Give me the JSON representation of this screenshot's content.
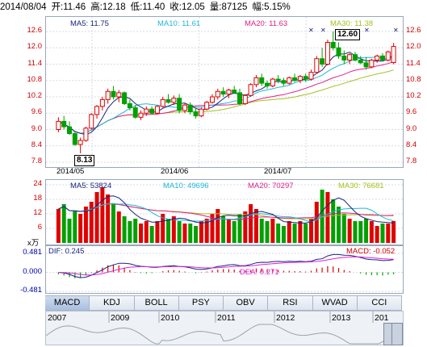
{
  "header": {
    "date": "2014/08/04",
    "open": "开:11.46",
    "high": "高:12.18",
    "low": "低:11.40",
    "close": "收:12.05",
    "volume": "量:87125",
    "change": "幅:5.15%"
  },
  "price_legend": {
    "ma5": "MA5: 11.75",
    "ma10": "MA10: 11.61",
    "ma20": "MA20: 11.63",
    "ma30": "MA30: 11.38"
  },
  "volume_legend": {
    "ma5": "MA5: 53824",
    "ma10": "MA10: 49696",
    "ma20": "MA20: 70297",
    "ma30": "MA30: 76681"
  },
  "volume_unit": "x万",
  "macd_legend": {
    "dif": "DIF: 0.245",
    "dea": "DEA: 0.271",
    "macd": "MACD: -0.052"
  },
  "price_ticks": [
    "12.6",
    "12.0",
    "11.4",
    "10.8",
    "10.2",
    "9.6",
    "9.0",
    "8.4",
    "7.8"
  ],
  "volume_ticks": [
    "24",
    "18",
    "12",
    "6"
  ],
  "macd_ticks": [
    "0.481",
    "0.000",
    "-0.481"
  ],
  "x_ticks": [
    "2014/05",
    "2014/06",
    "2014/07"
  ],
  "callouts": {
    "high": "12.60",
    "low": "8.13"
  },
  "tabs": [
    "MACD",
    "KDJ",
    "BOLL",
    "PSY",
    "OBV",
    "RSI",
    "WVAD",
    "CCI"
  ],
  "timeline_years": [
    "2007",
    "2009",
    "2010",
    "2011",
    "2012",
    "2013",
    "201"
  ],
  "colors": {
    "up": "#e00000",
    "down": "#00a000",
    "ma5": "#1a237e",
    "ma10": "#20b8d8",
    "ma20": "#e0208a",
    "ma30": "#a6c020",
    "dif": "#1a237e",
    "dea": "#e020d8"
  },
  "chart_data": {
    "type": "candlestick",
    "ylim": [
      7.8,
      12.6
    ],
    "candles": [
      [
        9.0,
        9.45,
        8.9,
        9.3
      ],
      [
        9.3,
        9.5,
        9.0,
        9.1
      ],
      [
        9.1,
        9.3,
        8.8,
        8.85
      ],
      [
        8.85,
        8.95,
        8.4,
        8.45
      ],
      [
        8.45,
        8.7,
        8.13,
        8.6
      ],
      [
        8.6,
        9.1,
        8.55,
        9.05
      ],
      [
        9.05,
        9.6,
        9.0,
        9.55
      ],
      [
        9.55,
        9.9,
        9.4,
        9.85
      ],
      [
        9.85,
        10.2,
        9.7,
        10.1
      ],
      [
        10.1,
        10.5,
        9.95,
        10.4
      ],
      [
        10.4,
        10.6,
        10.1,
        10.2
      ],
      [
        10.2,
        10.45,
        10.0,
        10.35
      ],
      [
        10.35,
        10.4,
        9.9,
        9.95
      ],
      [
        9.95,
        10.1,
        9.7,
        9.8
      ],
      [
        9.8,
        9.9,
        9.4,
        9.45
      ],
      [
        9.45,
        9.7,
        9.35,
        9.6
      ],
      [
        9.6,
        9.85,
        9.5,
        9.75
      ],
      [
        9.75,
        9.85,
        9.55,
        9.6
      ],
      [
        9.6,
        9.9,
        9.55,
        9.85
      ],
      [
        9.85,
        10.2,
        9.8,
        10.1
      ],
      [
        10.1,
        10.3,
        9.95,
        10.0
      ],
      [
        10.0,
        10.25,
        9.9,
        10.15
      ],
      [
        10.15,
        10.3,
        9.6,
        9.7
      ],
      [
        9.7,
        9.95,
        9.6,
        9.9
      ],
      [
        9.9,
        10.0,
        9.55,
        9.65
      ],
      [
        9.65,
        9.8,
        9.4,
        9.5
      ],
      [
        9.5,
        9.8,
        9.45,
        9.75
      ],
      [
        9.75,
        10.05,
        9.7,
        10.0
      ],
      [
        10.0,
        10.3,
        9.95,
        10.2
      ],
      [
        10.2,
        10.5,
        10.1,
        10.4
      ],
      [
        10.4,
        10.55,
        10.2,
        10.3
      ],
      [
        10.3,
        10.5,
        10.15,
        10.45
      ],
      [
        10.45,
        10.6,
        10.3,
        10.35
      ],
      [
        10.35,
        10.5,
        9.9,
        9.95
      ],
      [
        9.95,
        10.3,
        9.9,
        10.25
      ],
      [
        10.25,
        10.7,
        10.2,
        10.65
      ],
      [
        10.65,
        11.0,
        10.55,
        10.9
      ],
      [
        10.9,
        11.05,
        10.6,
        10.7
      ],
      [
        10.7,
        10.8,
        10.5,
        10.6
      ],
      [
        10.6,
        10.9,
        10.55,
        10.85
      ],
      [
        10.85,
        11.0,
        10.7,
        10.8
      ],
      [
        10.8,
        10.9,
        10.6,
        10.7
      ],
      [
        10.7,
        10.95,
        10.65,
        10.9
      ],
      [
        10.9,
        11.05,
        10.75,
        10.8
      ],
      [
        10.8,
        11.0,
        10.7,
        10.95
      ],
      [
        10.95,
        11.05,
        10.75,
        10.85
      ],
      [
        10.85,
        11.2,
        10.8,
        11.1
      ],
      [
        11.1,
        11.7,
        11.05,
        11.6
      ],
      [
        11.6,
        12.0,
        11.3,
        11.4
      ],
      [
        11.4,
        12.3,
        11.35,
        12.2
      ],
      [
        12.2,
        12.6,
        11.9,
        12.0
      ],
      [
        12.0,
        12.2,
        11.6,
        11.7
      ],
      [
        11.7,
        11.9,
        11.4,
        11.55
      ],
      [
        11.55,
        11.8,
        11.4,
        11.75
      ],
      [
        11.75,
        11.85,
        11.5,
        11.55
      ],
      [
        11.55,
        11.7,
        11.4,
        11.45
      ],
      [
        11.45,
        11.65,
        11.2,
        11.3
      ],
      [
        11.3,
        11.6,
        11.25,
        11.55
      ],
      [
        11.55,
        11.75,
        11.45,
        11.7
      ],
      [
        11.7,
        11.8,
        11.5,
        11.55
      ],
      [
        11.55,
        11.9,
        11.5,
        11.85
      ],
      [
        11.46,
        12.18,
        11.4,
        12.05
      ]
    ],
    "volume": [
      14,
      16,
      10,
      13,
      12,
      15,
      17,
      21,
      23,
      20,
      16,
      13,
      11,
      9,
      10,
      8,
      9,
      7,
      9,
      12,
      10,
      11,
      9,
      8,
      8,
      7,
      9,
      10,
      12,
      14,
      11,
      10,
      9,
      12,
      13,
      16,
      14,
      10,
      9,
      10,
      8,
      7,
      9,
      8,
      9,
      8,
      10,
      17,
      22,
      21,
      18,
      15,
      12,
      10,
      9,
      9,
      10,
      9,
      7,
      8,
      8,
      9
    ],
    "macd_bars": [
      -0.05,
      -0.08,
      -0.12,
      -0.15,
      -0.14,
      -0.08,
      -0.02,
      0.05,
      0.12,
      0.18,
      0.2,
      0.18,
      0.12,
      0.06,
      0.01,
      -0.02,
      -0.03,
      -0.02,
      0.0,
      0.03,
      0.05,
      0.06,
      0.04,
      0.02,
      0.0,
      -0.02,
      -0.01,
      0.02,
      0.05,
      0.07,
      0.08,
      0.08,
      0.07,
      0.04,
      0.04,
      0.06,
      0.1,
      0.1,
      0.08,
      0.07,
      0.06,
      0.04,
      0.04,
      0.03,
      0.03,
      0.02,
      0.04,
      0.1,
      0.12,
      0.16,
      0.15,
      0.11,
      0.06,
      0.03,
      0.0,
      -0.03,
      -0.06,
      -0.07,
      -0.07,
      -0.08,
      -0.06,
      -0.05
    ]
  }
}
